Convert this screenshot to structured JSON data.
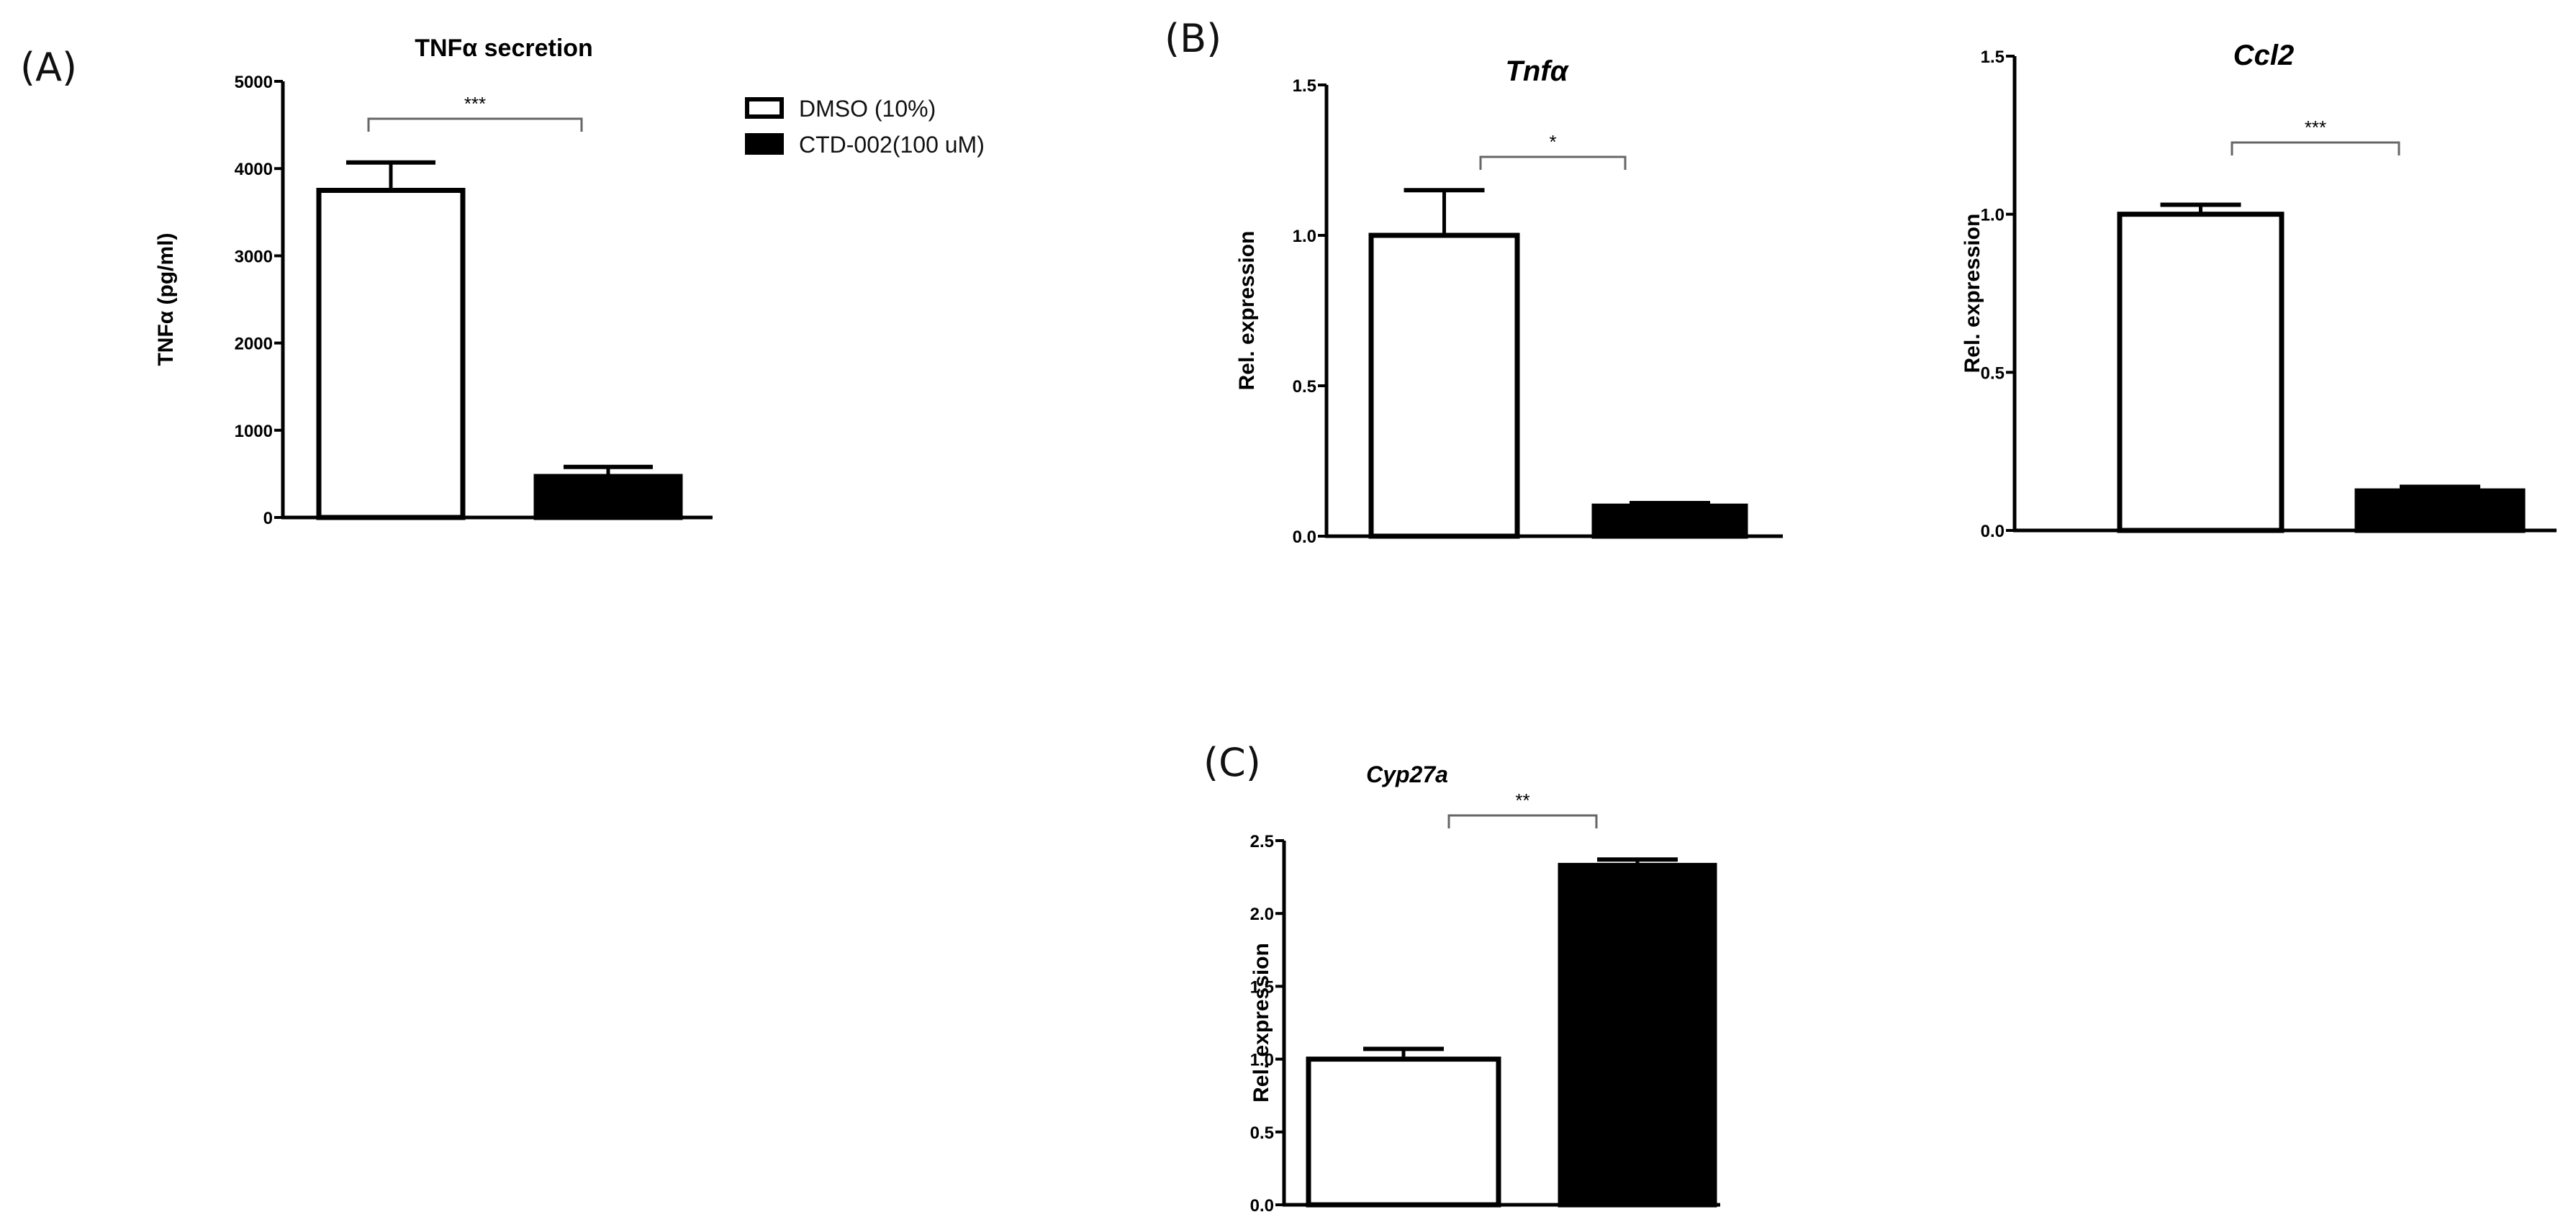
{
  "panels": {
    "A": {
      "label": "(A)"
    },
    "B": {
      "label": "(B)"
    },
    "C": {
      "label": "(C)"
    }
  },
  "legend": {
    "items": [
      {
        "label": "DMSO (10%)",
        "fill": "#ffffff",
        "stroke": "#000000"
      },
      {
        "label": "CTD-002(100 uM)",
        "fill": "#000000",
        "stroke": "#000000"
      }
    ]
  },
  "chart_data": [
    {
      "id": "A",
      "type": "bar",
      "title": "TNFα secretion",
      "xlabel": "",
      "ylabel": "TNFα (pg/ml)",
      "ylim": [
        0,
        5000
      ],
      "yticks": [
        "0",
        "1000",
        "2000",
        "3000",
        "4000",
        "5000"
      ],
      "categories": [
        "DMSO (10%)",
        "CTD-002(100 uM)"
      ],
      "values": [
        3750,
        470
      ],
      "errors": [
        320,
        110
      ],
      "significance": "***",
      "grid": false,
      "legend_position": "right"
    },
    {
      "id": "B1",
      "type": "bar",
      "title": "Tnfα",
      "xlabel": "",
      "ylabel": "Rel. expression",
      "ylim": [
        0,
        1.5
      ],
      "yticks": [
        "0.0",
        "0.5",
        "1.0",
        "1.5"
      ],
      "categories": [
        "DMSO (10%)",
        "CTD-002(100 uM)"
      ],
      "values": [
        1.0,
        0.1
      ],
      "errors": [
        0.15,
        0.01
      ],
      "significance": "*",
      "grid": false
    },
    {
      "id": "B2",
      "type": "bar",
      "title": "Ccl2",
      "xlabel": "",
      "ylabel": "Rel. expression",
      "ylim": [
        0,
        1.5
      ],
      "yticks": [
        "0.0",
        "0.5",
        "1.0",
        "1.5"
      ],
      "categories": [
        "DMSO (10%)",
        "CTD-002(100 uM)"
      ],
      "values": [
        1.0,
        0.125
      ],
      "errors": [
        0.03,
        0.013
      ],
      "significance": "***",
      "grid": false
    },
    {
      "id": "C",
      "type": "bar",
      "title": "Cyp27a",
      "xlabel": "",
      "ylabel": "Rel. expression",
      "ylim": [
        0,
        2.5
      ],
      "yticks": [
        "0.0",
        "0.5",
        "1.0",
        "1.5",
        "2.0",
        "2.5"
      ],
      "categories": [
        "DMSO (10%)",
        "CTD-002(100 uM)"
      ],
      "values": [
        1.0,
        2.33
      ],
      "errors": [
        0.07,
        0.04
      ],
      "significance": "**",
      "grid": false
    }
  ]
}
